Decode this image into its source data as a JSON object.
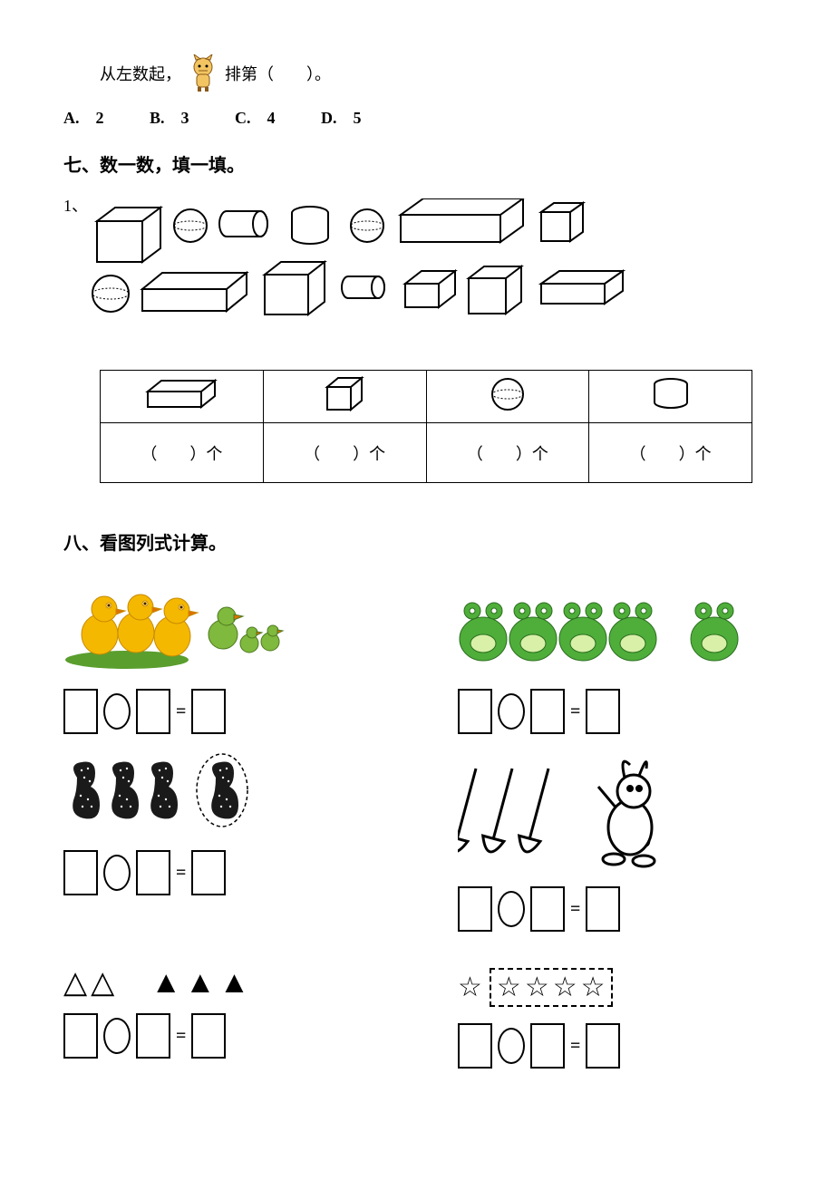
{
  "q6": {
    "prefix": "从左数起，",
    "suffix": "排第（　　）。",
    "options": {
      "a": "A.　2",
      "b": "B.　3",
      "c": "C.　4",
      "d": "D.　5"
    }
  },
  "sec7": {
    "title": "七、数一数，填一填。",
    "label": "1、",
    "fill": "（　　）个"
  },
  "sec8": {
    "title": "八、看图列式计算。"
  },
  "eq": "=",
  "shapes": {
    "cuboid_color": "#000000",
    "sphere_color": "#000000",
    "cylinder_color": "#000000",
    "cube_color": "#000000"
  },
  "triangles": {
    "empty": "△",
    "filled": "▲",
    "group1_count": 2,
    "group2_count": 3
  },
  "stars": {
    "glyph": "☆",
    "outside": 1,
    "inside": 4
  },
  "colors": {
    "chick": "#f5b800",
    "duck": "#7fb93d",
    "frog": "#4fae3a",
    "peanut": "#1a1a1a",
    "rabbit": "#000000"
  }
}
